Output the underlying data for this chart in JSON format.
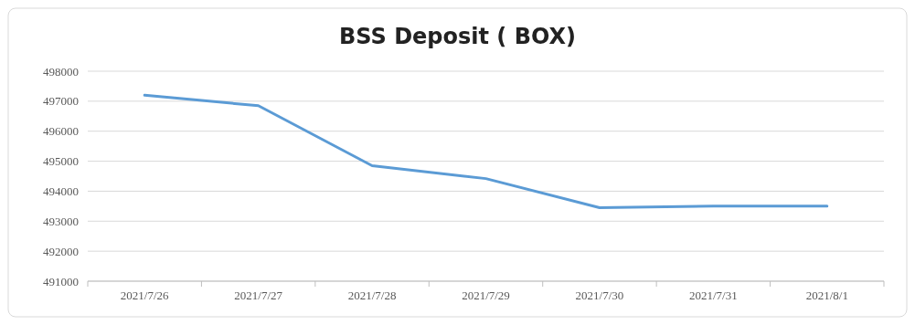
{
  "chart_data": {
    "type": "line",
    "title": "BSS Deposit ( BOX)",
    "categories": [
      "2021/7/26",
      "2021/7/27",
      "2021/7/28",
      "2021/7/29",
      "2021/7/30",
      "2021/7/31",
      "2021/8/1"
    ],
    "series": [
      {
        "color": "#5b9bd5",
        "values": [
          497200,
          496850,
          494850,
          494420,
          493450,
          493500,
          493500
        ]
      }
    ],
    "ylim": [
      491000,
      498000
    ],
    "yticks": [
      491000,
      492000,
      493000,
      494000,
      495000,
      496000,
      497000,
      498000
    ],
    "grid": "y",
    "marker": "none",
    "line_style": "solid"
  }
}
